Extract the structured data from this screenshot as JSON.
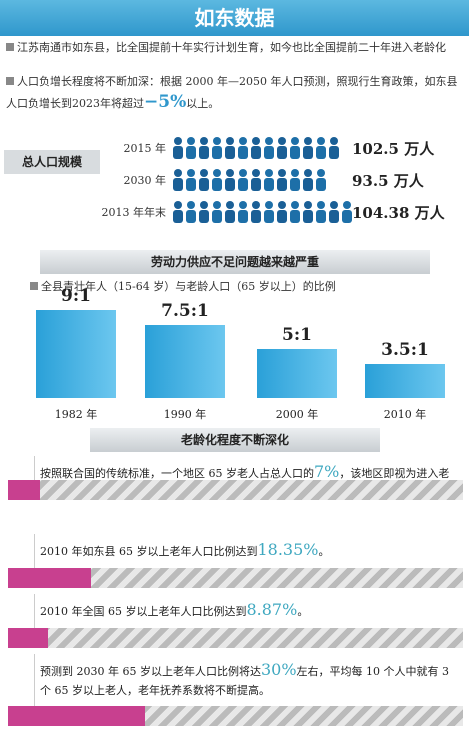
{
  "header": {
    "title": "如东数据"
  },
  "bullets": [
    {
      "text": "江苏南通市如东县，比全国提前十年实行计划生育，如今也比全国提前二十年进入老龄化"
    },
    {
      "text": "人口负增长程度将不断加深：根据 2000 年—2050 年人口预测，照现行生育政策，如东县人口负增长到2023年将超过",
      "highlight": "−5%",
      "after": "以上。"
    }
  ],
  "population": {
    "label": "总人口规模",
    "rows": [
      {
        "year": "2015 年",
        "value": "102.5 万人"
      },
      {
        "year": "2030 年",
        "value": "93.5 万人"
      },
      {
        "year": "2013 年年末",
        "value": "104.38 万人"
      }
    ]
  },
  "labor": {
    "title": "劳动力供应不足问题越来越严重",
    "subtitle": "全县青壮年人（15-64 岁）与老龄人口（65 岁以上）的比例",
    "bars": [
      {
        "label": "9:1",
        "ratio": 9,
        "year": "1982 年"
      },
      {
        "label": "7.5:1",
        "ratio": 7.5,
        "year": "1990 年"
      },
      {
        "label": "5:1",
        "ratio": 5,
        "year": "2000 年"
      },
      {
        "label": "3.5:1",
        "ratio": 3.5,
        "year": "2010 年"
      }
    ]
  },
  "aging": {
    "title": "老龄化程度不断深化",
    "items": [
      {
        "text": "按照联合国的传统标准，一个地区 65 岁老人占总人口的",
        "value": 7,
        "value_label": "7%",
        "after": "，该地区即视为进入老龄化社会。"
      },
      {
        "text": "2010 年如东县 65 岁以上老年人口比例达到",
        "value": 18.35,
        "value_label": "18.35%",
        "after": "。"
      },
      {
        "text": "2010 年全国 65 岁以上老年人口比例达到",
        "value": 8.87,
        "value_label": "8.87%",
        "after": "。"
      },
      {
        "text": "预测到 2030 年 65 岁以上老年人口比例将达",
        "value": 30,
        "value_label": "30%",
        "after": "左右，平均每 10 个人中就有 3 个 65 岁以上老人，老年抚养系数将不断提高。"
      }
    ]
  }
}
